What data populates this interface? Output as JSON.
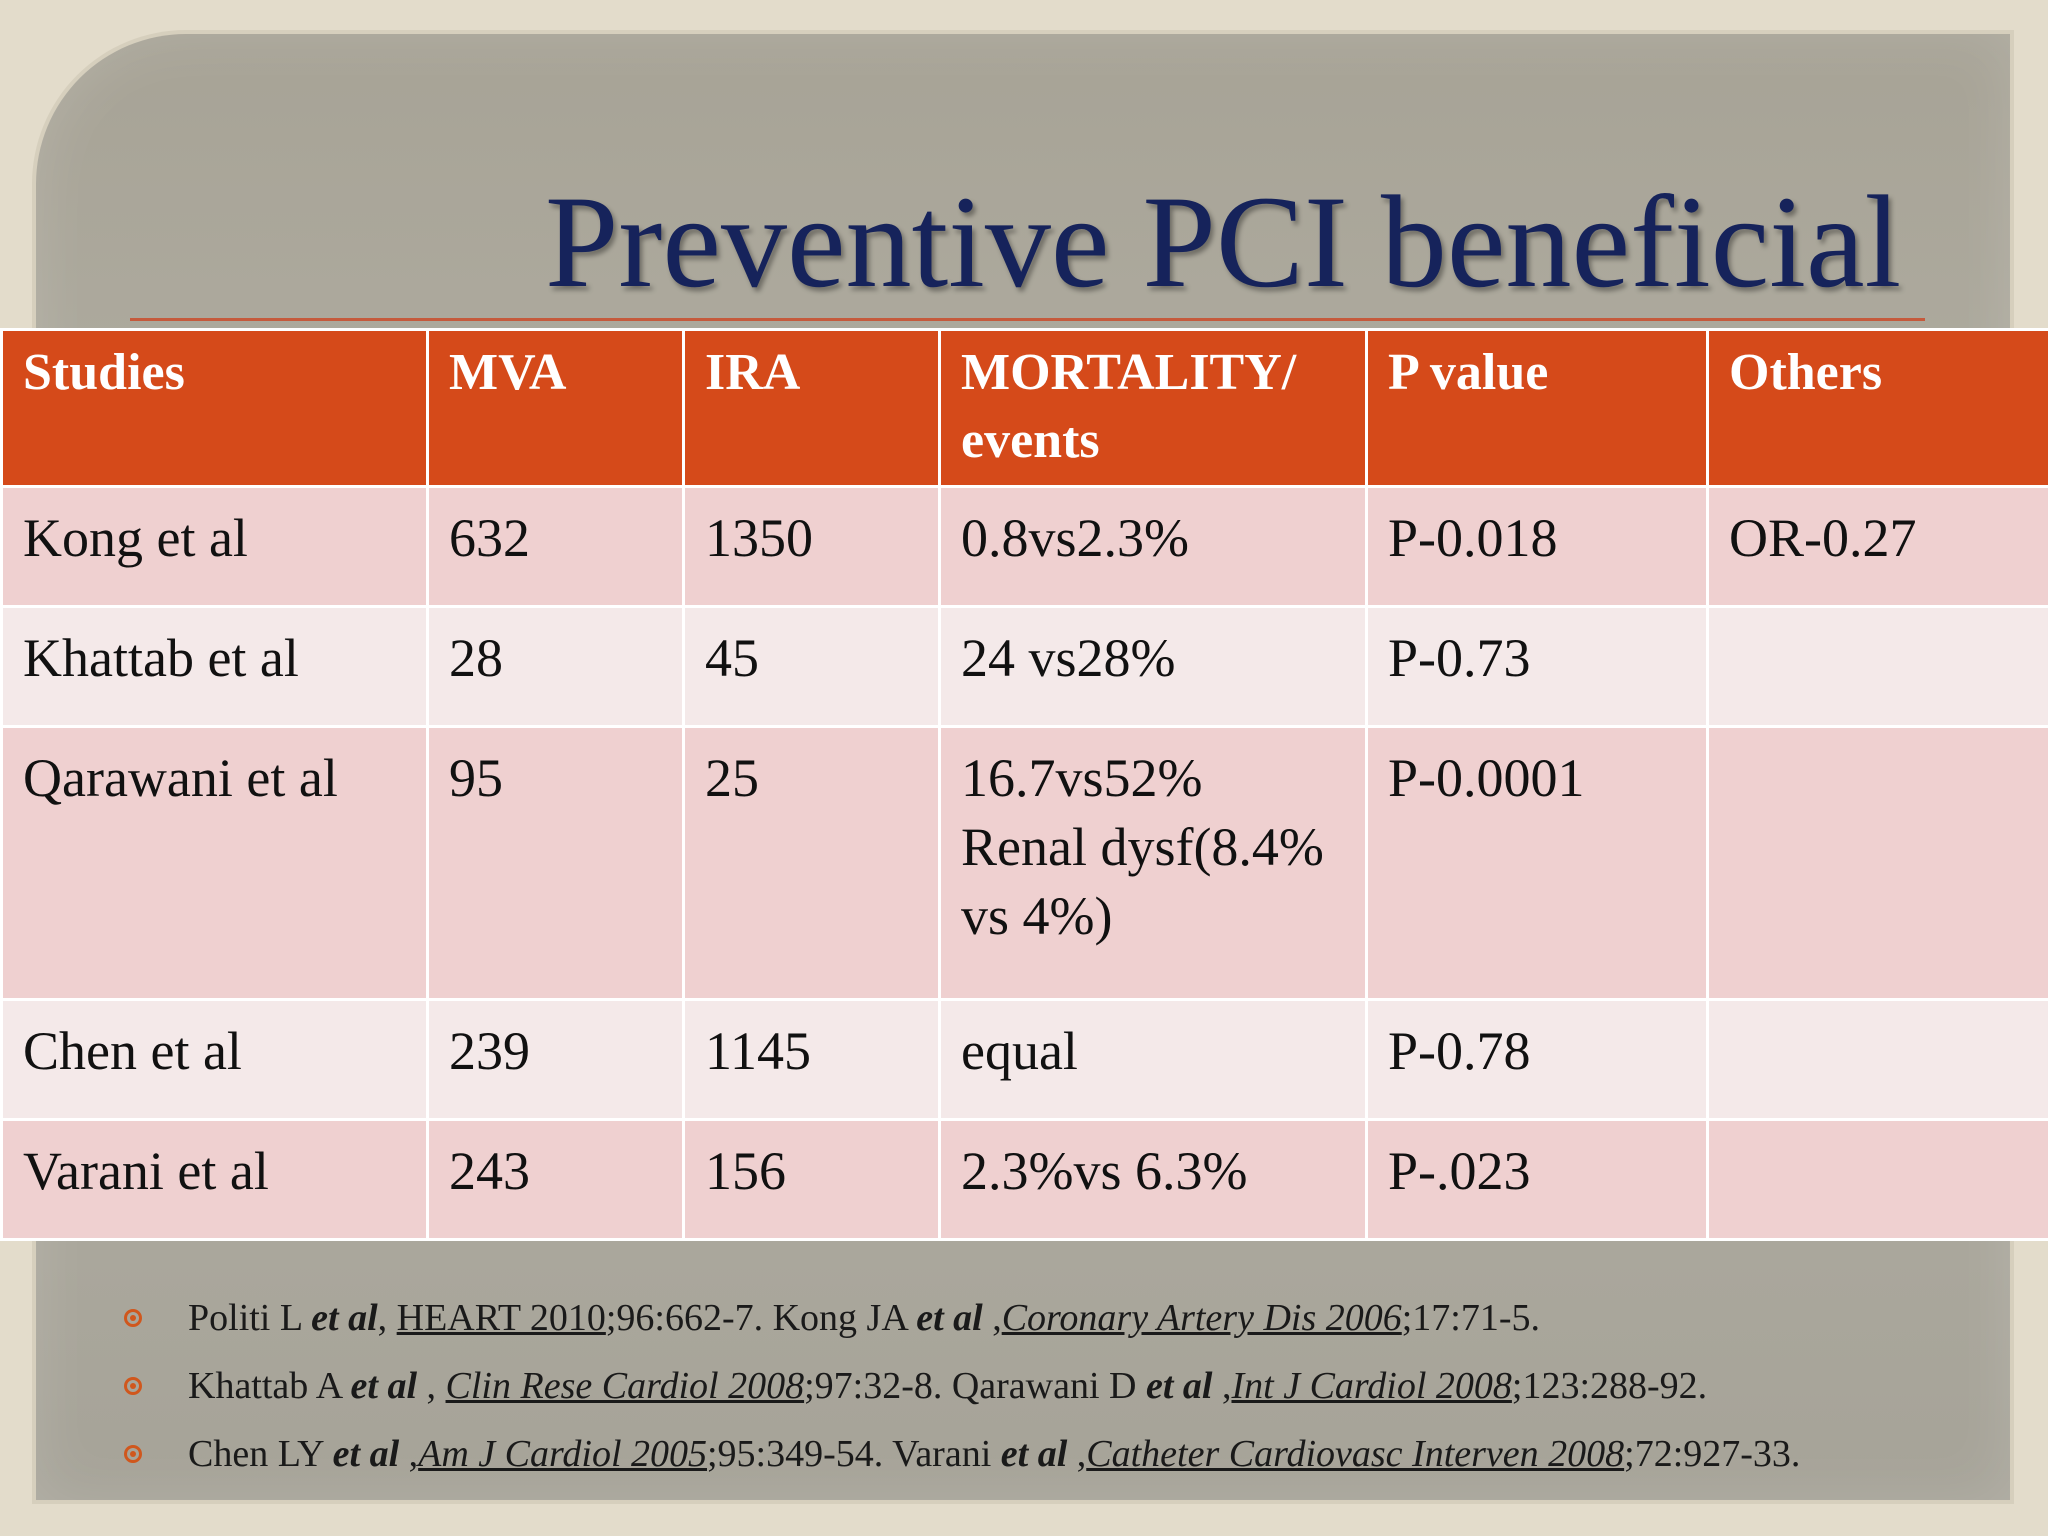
{
  "title": "Preventive  PCI beneficial",
  "table": {
    "headers": [
      "Studies",
      "MVA",
      "IRA",
      "MORTALITY/ events",
      "P value",
      "Others"
    ],
    "rows": [
      {
        "study": "Kong et al",
        "mva": "632",
        "ira": "1350",
        "mortality_lines": [
          "0.8vs2.3%"
        ],
        "p": "P-0.018",
        "others": "OR-0.27"
      },
      {
        "study": "Khattab et al",
        "mva": "28",
        "ira": "45",
        "mortality_lines": [
          "24 vs28%"
        ],
        "p": "P-0.73",
        "others": ""
      },
      {
        "study": "Qarawani et al",
        "mva": "95",
        "ira": "25",
        "mortality_lines": [
          "16.7vs52%",
          "Renal dysf(8.4%",
          "vs 4%)"
        ],
        "p": "P-0.0001",
        "others": ""
      },
      {
        "study": "Chen et al",
        "mva": "239",
        "ira": "1145",
        "mortality_lines": [
          "equal"
        ],
        "p": "P-0.78",
        "others": ""
      },
      {
        "study": "Varani et al",
        "mva": "243",
        "ira": "156",
        "mortality_lines": [
          "2.3%vs 6.3%"
        ],
        "p": "P-.023",
        "others": ""
      }
    ]
  },
  "references": [
    {
      "a1": "Politi L ",
      "a1_etal": "et al",
      "sep1": ", ",
      "j1": "HEART 2010",
      "c1": ";96:662-7.   Kong JA ",
      "a2_etal": "et al",
      "sep2": " ,",
      "j2": "Coronary Artery Dis 2006",
      "c2": ";17:71-5."
    },
    {
      "a1": "Khattab A ",
      "a1_etal": "et al",
      "sep1": " , ",
      "j1": "Clin Rese Cardiol 2008",
      "c1": ";97:32-8.  Qarawani D ",
      "a2_etal": "et al",
      "sep2": " ,",
      "j2": "Int J Cardiol 2008",
      "c2": ";123:288-92."
    },
    {
      "a1": "Chen LY ",
      "a1_etal": "et al",
      "sep1": " ,",
      "j1": "Am J Cardiol 2005",
      "c1": ";95:349-54. Varani ",
      "a2_etal": "et al",
      "sep2": " ,",
      "j2": "Catheter Cardiovasc Interven 2008",
      "c2": ";72:927-33."
    }
  ],
  "colors": {
    "header": "#d54a1a",
    "title": "#16235b",
    "row_odd": "#efd0d0",
    "row_even": "#f4e9e9",
    "bullet": "#d0571d"
  }
}
